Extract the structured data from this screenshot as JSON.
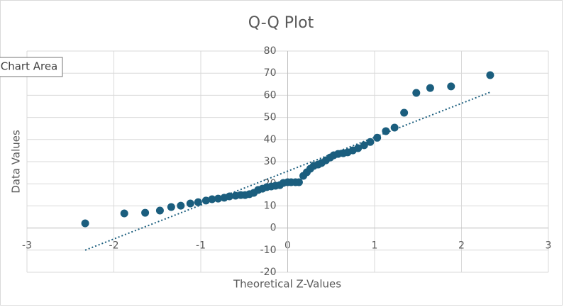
{
  "chart_data": {
    "type": "scatter",
    "title": "Q-Q Plot",
    "x_label": "Theoretical Z-Values",
    "y_label": "Data Values",
    "tooltip": "Chart Area",
    "color": "#1b5e7e",
    "x": [
      -2.33,
      -1.88,
      -1.64,
      -1.47,
      -1.34,
      -1.23,
      -1.12,
      -1.03,
      -0.94,
      -0.87,
      -0.8,
      -0.73,
      -0.67,
      -0.6,
      -0.54,
      -0.49,
      -0.44,
      -0.39,
      -0.34,
      -0.29,
      -0.24,
      -0.19,
      -0.14,
      -0.09,
      -0.05,
      0,
      0.04,
      0.09,
      0.13,
      0.18,
      0.22,
      0.26,
      0.3,
      0.35,
      0.39,
      0.44,
      0.49,
      0.53,
      0.58,
      0.64,
      0.69,
      0.75,
      0.81,
      0.88,
      0.95,
      1.03,
      1.13,
      1.23,
      1.34,
      1.48,
      1.64,
      1.88,
      2.33
    ],
    "values": [
      2.1,
      6.6,
      6.9,
      7.9,
      9.5,
      10.1,
      11.1,
      11.7,
      12.4,
      13,
      13.3,
      13.7,
      14.3,
      14.6,
      14.9,
      14.9,
      15.3,
      15.9,
      17.2,
      17.8,
      18.5,
      18.8,
      19.1,
      19.4,
      20.4,
      20.7,
      20.7,
      20.7,
      20.7,
      23.6,
      25.2,
      26.8,
      28.1,
      28.7,
      29.4,
      30.6,
      31.9,
      32.9,
      33.5,
      33.8,
      34.2,
      35.1,
      36.1,
      37.4,
      38.9,
      40.8,
      43.8,
      45.4,
      52.1,
      61.1,
      63.3,
      64,
      69.1
    ],
    "trendline": {
      "x": [
        -2.33,
        2.33
      ],
      "values": [
        -10,
        61.4
      ],
      "color": "#1b5e7e"
    },
    "xlim": [
      -3,
      3
    ],
    "xticks": [
      -3,
      -2,
      -1,
      0,
      1,
      2,
      3
    ],
    "ylim": [
      -20,
      80
    ],
    "yticks": [
      -20,
      -10,
      0,
      10,
      20,
      30,
      40,
      50,
      60,
      70,
      80
    ],
    "grid": true
  }
}
